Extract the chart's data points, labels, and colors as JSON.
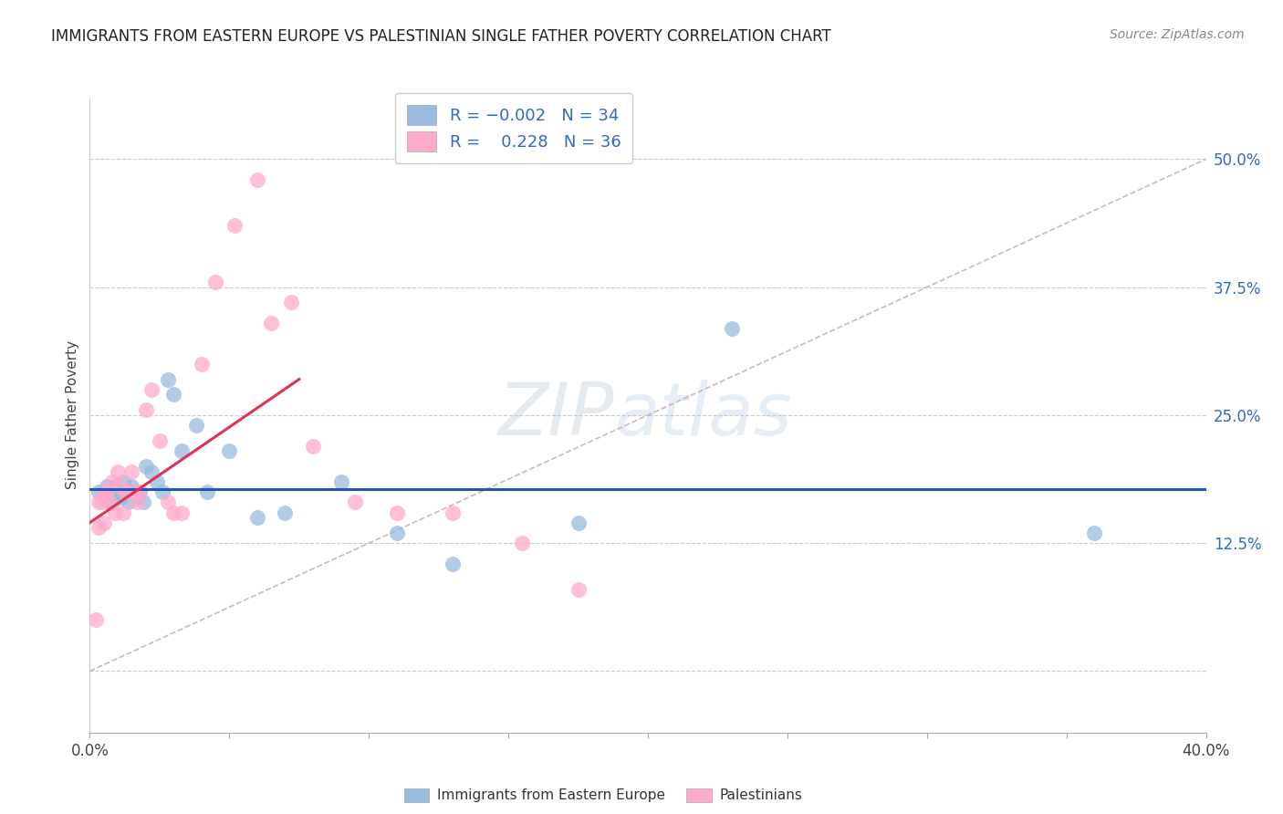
{
  "title": "IMMIGRANTS FROM EASTERN EUROPE VS PALESTINIAN SINGLE FATHER POVERTY CORRELATION CHART",
  "source": "Source: ZipAtlas.com",
  "xlabel_bottom": "Immigrants from Eastern Europe",
  "xlabel_right": "Palestinians",
  "ylabel": "Single Father Poverty",
  "xlim": [
    0.0,
    0.4
  ],
  "ylim": [
    -0.06,
    0.56
  ],
  "yticks_right": [
    0.0,
    0.125,
    0.25,
    0.375,
    0.5
  ],
  "ytick_labels_right": [
    "",
    "12.5%",
    "25.0%",
    "37.5%",
    "50.0%"
  ],
  "blue_color": "#99BBDD",
  "pink_color": "#FFAACC",
  "blue_line_color": "#2255BB",
  "pink_line_color": "#DD3355",
  "ref_line_color": "#CCAAAA",
  "watermark_zip": "ZIP",
  "watermark_atlas": "atlas",
  "watermark_color": "#BBDDEE",
  "blue_dots_x": [
    0.003,
    0.005,
    0.006,
    0.007,
    0.008,
    0.009,
    0.01,
    0.011,
    0.012,
    0.013,
    0.014,
    0.015,
    0.016,
    0.017,
    0.018,
    0.019,
    0.02,
    0.022,
    0.024,
    0.026,
    0.028,
    0.03,
    0.033,
    0.038,
    0.042,
    0.05,
    0.06,
    0.07,
    0.09,
    0.11,
    0.13,
    0.175,
    0.23,
    0.36
  ],
  "blue_dots_y": [
    0.175,
    0.17,
    0.18,
    0.175,
    0.165,
    0.18,
    0.175,
    0.17,
    0.185,
    0.175,
    0.165,
    0.18,
    0.175,
    0.17,
    0.175,
    0.165,
    0.2,
    0.195,
    0.185,
    0.175,
    0.285,
    0.27,
    0.215,
    0.24,
    0.175,
    0.215,
    0.15,
    0.155,
    0.185,
    0.135,
    0.105,
    0.145,
    0.335,
    0.135
  ],
  "pink_dots_x": [
    0.002,
    0.003,
    0.003,
    0.004,
    0.005,
    0.005,
    0.006,
    0.007,
    0.008,
    0.009,
    0.01,
    0.011,
    0.012,
    0.013,
    0.015,
    0.016,
    0.017,
    0.018,
    0.02,
    0.022,
    0.025,
    0.028,
    0.03,
    0.033,
    0.04,
    0.045,
    0.052,
    0.06,
    0.065,
    0.072,
    0.08,
    0.095,
    0.11,
    0.13,
    0.155,
    0.175
  ],
  "pink_dots_y": [
    0.05,
    0.165,
    0.14,
    0.165,
    0.175,
    0.145,
    0.175,
    0.165,
    0.185,
    0.155,
    0.195,
    0.18,
    0.155,
    0.175,
    0.195,
    0.175,
    0.165,
    0.175,
    0.255,
    0.275,
    0.225,
    0.165,
    0.155,
    0.155,
    0.3,
    0.38,
    0.435,
    0.48,
    0.34,
    0.36,
    0.22,
    0.165,
    0.155,
    0.155,
    0.125,
    0.08
  ],
  "blue_line_x0": 0.0,
  "blue_line_x1": 0.4,
  "blue_line_y": 0.178,
  "pink_line_x0": 0.0,
  "pink_line_x1": 0.075,
  "pink_line_y0": 0.145,
  "pink_line_y1": 0.285,
  "ref_line_x0": 0.0,
  "ref_line_x1": 0.4,
  "ref_line_y0": 0.0,
  "ref_line_y1": 0.5
}
